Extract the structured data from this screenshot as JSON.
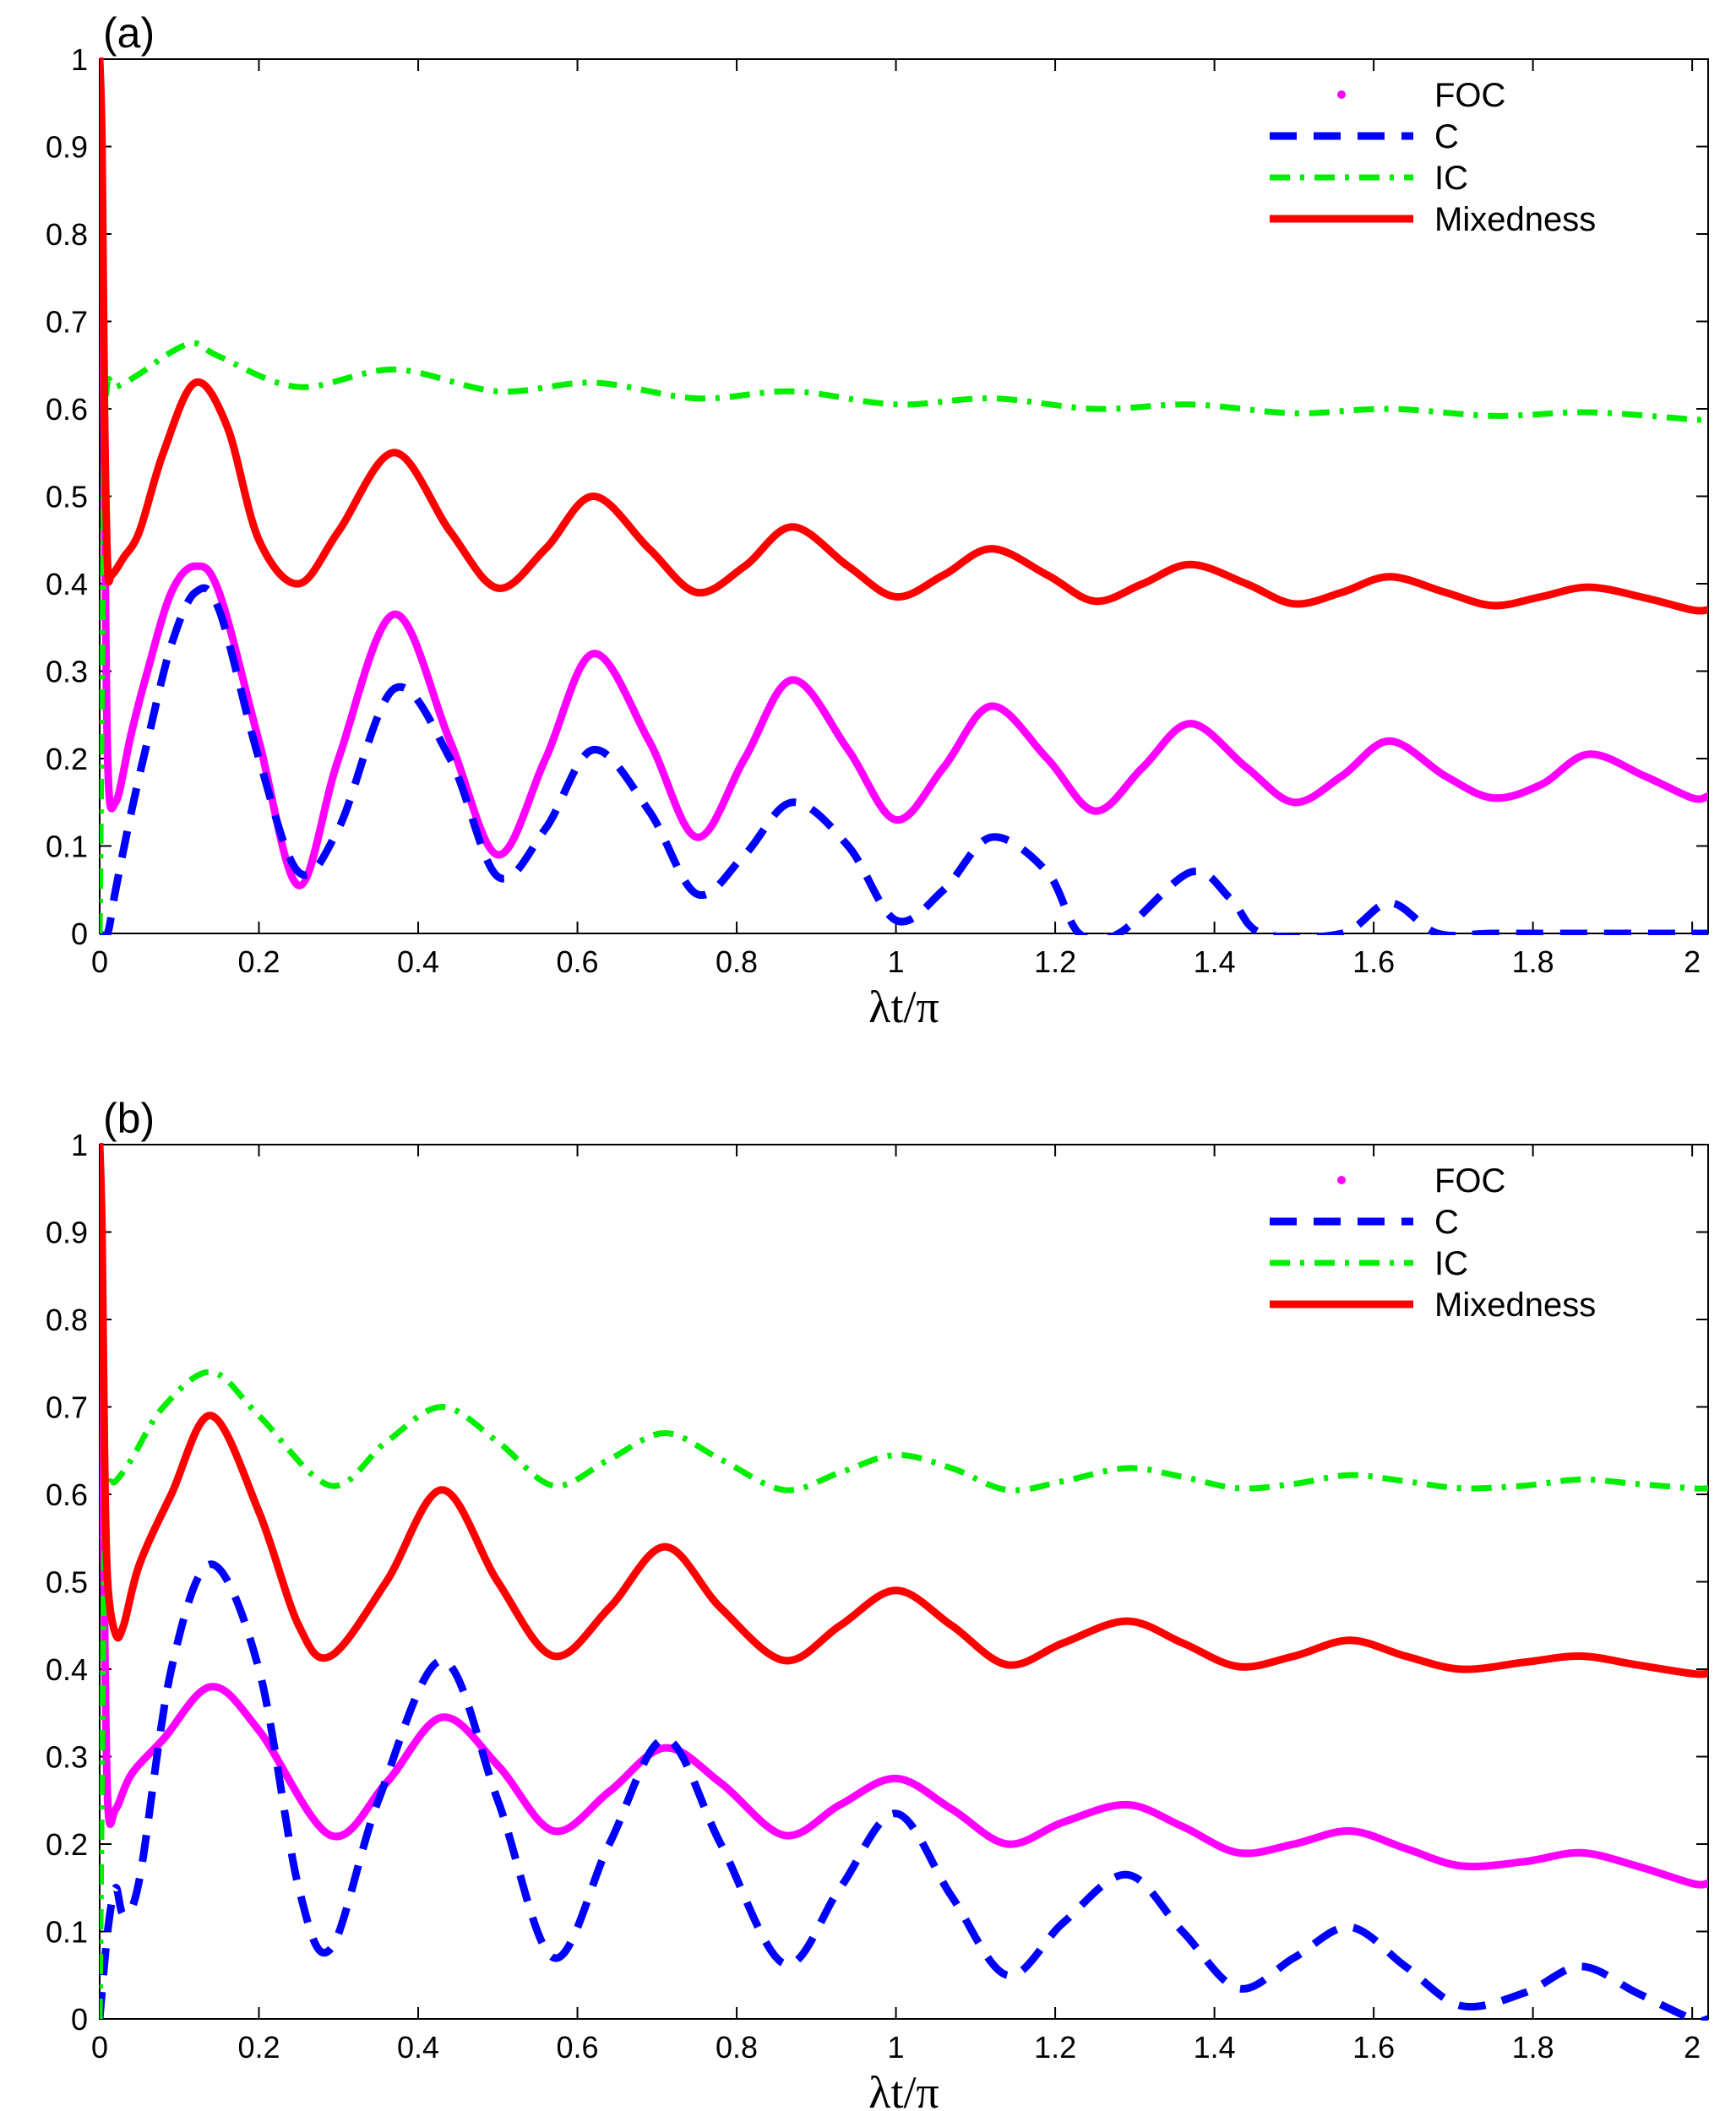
{
  "chart_data": [
    {
      "type": "line",
      "panel_label": "(a)",
      "xlabel": "λt/π",
      "ylabel": "",
      "xlim": [
        0,
        2.02
      ],
      "ylim": [
        0,
        1
      ],
      "xticks": [
        0,
        0.2,
        0.4,
        0.6,
        0.8,
        1,
        1.2,
        1.4,
        1.6,
        1.8,
        2
      ],
      "xtick_labels": [
        "0",
        "0.2",
        "0.4",
        "0.6",
        "0.8",
        "1",
        "1.2",
        "1.4",
        "1.6",
        "1.8",
        "2"
      ],
      "yticks": [
        0,
        0.1,
        0.2,
        0.3,
        0.4,
        0.5,
        0.6,
        0.7,
        0.8,
        0.9,
        1
      ],
      "ytick_labels": [
        "0",
        "0.1",
        "0.2",
        "0.3",
        "0.4",
        "0.5",
        "0.6",
        "0.7",
        "0.8",
        "0.9",
        "1"
      ],
      "legend_position": "top-right",
      "series": [
        {
          "name": "FOC",
          "color": "#ff00ff",
          "style": "dotted-thick",
          "x": [
            0,
            0.005,
            0.01,
            0.02,
            0.04,
            0.06,
            0.09,
            0.12,
            0.15,
            0.2,
            0.25,
            0.3,
            0.37,
            0.44,
            0.5,
            0.56,
            0.62,
            0.69,
            0.75,
            0.81,
            0.87,
            0.94,
            1.0,
            1.06,
            1.12,
            1.19,
            1.25,
            1.31,
            1.37,
            1.44,
            1.5,
            1.56,
            1.62,
            1.69,
            1.75,
            1.81,
            1.87,
            1.94,
            2.0,
            2.02
          ],
          "y": [
            1.0,
            0.62,
            0.2,
            0.15,
            0.23,
            0.3,
            0.39,
            0.42,
            0.39,
            0.22,
            0.055,
            0.2,
            0.365,
            0.22,
            0.09,
            0.2,
            0.32,
            0.22,
            0.11,
            0.2,
            0.29,
            0.21,
            0.13,
            0.19,
            0.26,
            0.2,
            0.14,
            0.19,
            0.24,
            0.19,
            0.15,
            0.18,
            0.22,
            0.18,
            0.155,
            0.17,
            0.205,
            0.18,
            0.155,
            0.157
          ]
        },
        {
          "name": "C",
          "color": "#0000ff",
          "style": "dashed",
          "x": [
            0,
            0.01,
            0.02,
            0.04,
            0.06,
            0.09,
            0.12,
            0.15,
            0.2,
            0.25,
            0.3,
            0.37,
            0.44,
            0.5,
            0.56,
            0.62,
            0.69,
            0.75,
            0.81,
            0.87,
            0.94,
            1.0,
            1.06,
            1.12,
            1.19,
            1.23,
            1.28,
            1.37,
            1.42,
            1.46,
            1.56,
            1.62,
            1.68,
            1.75,
            1.87,
            2.0,
            2.02
          ],
          "y": [
            0.0,
            0.0,
            0.05,
            0.14,
            0.22,
            0.33,
            0.39,
            0.37,
            0.2,
            0.07,
            0.12,
            0.28,
            0.2,
            0.065,
            0.12,
            0.21,
            0.14,
            0.045,
            0.09,
            0.15,
            0.1,
            0.015,
            0.05,
            0.11,
            0.07,
            0.0,
            0.0,
            0.07,
            0.04,
            0.0,
            0.0,
            0.035,
            0.0,
            0.0,
            0.0,
            0.0,
            0.0
          ]
        },
        {
          "name": "IC",
          "color": "#00ee00",
          "style": "dashdot",
          "x": [
            0,
            0.003,
            0.006,
            0.01,
            0.02,
            0.05,
            0.09,
            0.12,
            0.15,
            0.25,
            0.37,
            0.5,
            0.62,
            0.75,
            0.87,
            1.0,
            1.12,
            1.25,
            1.37,
            1.5,
            1.62,
            1.75,
            1.87,
            2.0,
            2.02
          ],
          "y": [
            0.0,
            0.3,
            0.55,
            0.63,
            0.625,
            0.64,
            0.665,
            0.675,
            0.66,
            0.625,
            0.645,
            0.62,
            0.63,
            0.612,
            0.62,
            0.605,
            0.612,
            0.6,
            0.605,
            0.595,
            0.6,
            0.592,
            0.596,
            0.588,
            0.587
          ]
        },
        {
          "name": "Mixedness",
          "color": "#ff0000",
          "style": "solid",
          "x": [
            0,
            0.003,
            0.006,
            0.01,
            0.015,
            0.03,
            0.05,
            0.08,
            0.12,
            0.16,
            0.2,
            0.25,
            0.3,
            0.37,
            0.44,
            0.5,
            0.56,
            0.62,
            0.69,
            0.75,
            0.81,
            0.87,
            0.94,
            1.0,
            1.06,
            1.12,
            1.19,
            1.25,
            1.31,
            1.37,
            1.44,
            1.5,
            1.56,
            1.62,
            1.69,
            1.75,
            1.81,
            1.87,
            1.94,
            2.0,
            2.02
          ],
          "y": [
            1.0,
            0.9,
            0.6,
            0.42,
            0.41,
            0.43,
            0.46,
            0.55,
            0.63,
            0.58,
            0.45,
            0.4,
            0.46,
            0.55,
            0.46,
            0.395,
            0.44,
            0.5,
            0.44,
            0.39,
            0.42,
            0.465,
            0.42,
            0.385,
            0.41,
            0.44,
            0.41,
            0.38,
            0.4,
            0.422,
            0.4,
            0.377,
            0.39,
            0.408,
            0.39,
            0.375,
            0.385,
            0.396,
            0.384,
            0.37,
            0.37
          ]
        }
      ]
    },
    {
      "type": "line",
      "panel_label": "(b)",
      "xlabel": "λt/π",
      "ylabel": "",
      "xlim": [
        0,
        2.02
      ],
      "ylim": [
        0,
        1
      ],
      "xticks": [
        0,
        0.2,
        0.4,
        0.6,
        0.8,
        1,
        1.2,
        1.4,
        1.6,
        1.8,
        2
      ],
      "xtick_labels": [
        "0",
        "0.2",
        "0.4",
        "0.6",
        "0.8",
        "1",
        "1.2",
        "1.4",
        "1.6",
        "1.8",
        "2"
      ],
      "yticks": [
        0,
        0.1,
        0.2,
        0.3,
        0.4,
        0.5,
        0.6,
        0.7,
        0.8,
        0.9,
        1
      ],
      "ytick_labels": [
        "0",
        "0.1",
        "0.2",
        "0.3",
        "0.4",
        "0.5",
        "0.6",
        "0.7",
        "0.8",
        "0.9",
        "1"
      ],
      "legend_position": "top-right",
      "series": [
        {
          "name": "FOC",
          "color": "#ff00ff",
          "style": "dotted-thick",
          "x": [
            0,
            0.005,
            0.01,
            0.02,
            0.04,
            0.08,
            0.14,
            0.2,
            0.29,
            0.36,
            0.43,
            0.5,
            0.57,
            0.64,
            0.71,
            0.78,
            0.86,
            0.93,
            1.0,
            1.07,
            1.14,
            1.21,
            1.29,
            1.36,
            1.43,
            1.5,
            1.57,
            1.64,
            1.71,
            1.79,
            1.86,
            1.93,
            2.0,
            2.02
          ],
          "y": [
            1.0,
            0.55,
            0.25,
            0.24,
            0.28,
            0.32,
            0.38,
            0.33,
            0.21,
            0.27,
            0.345,
            0.29,
            0.215,
            0.26,
            0.31,
            0.27,
            0.21,
            0.245,
            0.275,
            0.24,
            0.2,
            0.225,
            0.245,
            0.22,
            0.19,
            0.2,
            0.215,
            0.195,
            0.175,
            0.18,
            0.19,
            0.175,
            0.155,
            0.155
          ]
        },
        {
          "name": "C",
          "color": "#0000ff",
          "style": "dashed",
          "x": [
            0,
            0.01,
            0.02,
            0.03,
            0.05,
            0.09,
            0.14,
            0.2,
            0.25,
            0.29,
            0.35,
            0.43,
            0.5,
            0.57,
            0.64,
            0.71,
            0.78,
            0.86,
            0.93,
            1.0,
            1.07,
            1.14,
            1.21,
            1.29,
            1.36,
            1.43,
            1.5,
            1.57,
            1.64,
            1.71,
            1.79,
            1.86,
            1.93,
            2.0,
            2.02
          ],
          "y": [
            0.0,
            0.1,
            0.15,
            0.12,
            0.16,
            0.4,
            0.52,
            0.4,
            0.15,
            0.08,
            0.25,
            0.41,
            0.25,
            0.07,
            0.2,
            0.32,
            0.2,
            0.063,
            0.15,
            0.235,
            0.14,
            0.05,
            0.11,
            0.165,
            0.1,
            0.035,
            0.07,
            0.105,
            0.06,
            0.015,
            0.03,
            0.06,
            0.03,
            0.0,
            0.0
          ]
        },
        {
          "name": "IC",
          "color": "#00ee00",
          "style": "dashdot",
          "x": [
            0,
            0.003,
            0.006,
            0.01,
            0.02,
            0.04,
            0.08,
            0.14,
            0.2,
            0.29,
            0.36,
            0.43,
            0.5,
            0.57,
            0.64,
            0.71,
            0.78,
            0.86,
            0.93,
            1.0,
            1.07,
            1.14,
            1.21,
            1.29,
            1.36,
            1.43,
            1.5,
            1.57,
            1.64,
            1.71,
            1.79,
            1.86,
            1.93,
            2.0,
            2.02
          ],
          "y": [
            0.0,
            0.3,
            0.55,
            0.61,
            0.615,
            0.64,
            0.7,
            0.74,
            0.69,
            0.61,
            0.66,
            0.7,
            0.66,
            0.61,
            0.64,
            0.67,
            0.64,
            0.605,
            0.625,
            0.645,
            0.63,
            0.605,
            0.615,
            0.63,
            0.62,
            0.607,
            0.612,
            0.622,
            0.615,
            0.607,
            0.61,
            0.617,
            0.612,
            0.607,
            0.607
          ]
        },
        {
          "name": "Mixedness",
          "color": "#ff0000",
          "style": "solid",
          "x": [
            0,
            0.003,
            0.006,
            0.01,
            0.02,
            0.03,
            0.05,
            0.09,
            0.14,
            0.2,
            0.25,
            0.29,
            0.36,
            0.43,
            0.5,
            0.57,
            0.64,
            0.71,
            0.78,
            0.86,
            0.93,
            1.0,
            1.07,
            1.14,
            1.21,
            1.29,
            1.36,
            1.43,
            1.5,
            1.57,
            1.64,
            1.71,
            1.79,
            1.86,
            1.93,
            2.0,
            2.02
          ],
          "y": [
            1.0,
            0.9,
            0.65,
            0.5,
            0.44,
            0.45,
            0.52,
            0.6,
            0.69,
            0.58,
            0.45,
            0.415,
            0.5,
            0.605,
            0.5,
            0.415,
            0.47,
            0.54,
            0.47,
            0.41,
            0.45,
            0.49,
            0.45,
            0.405,
            0.43,
            0.455,
            0.43,
            0.403,
            0.415,
            0.433,
            0.415,
            0.4,
            0.408,
            0.415,
            0.405,
            0.395,
            0.395
          ]
        }
      ]
    }
  ]
}
